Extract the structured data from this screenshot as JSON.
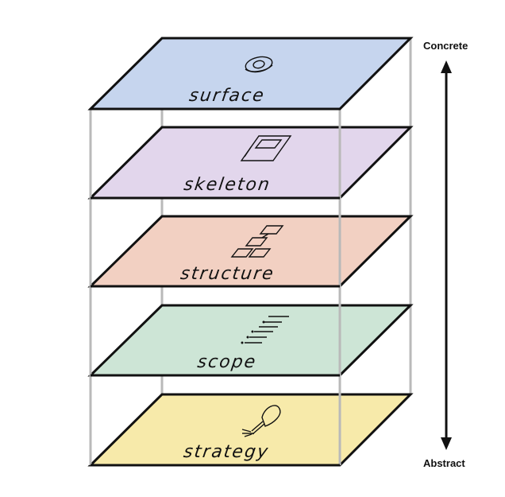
{
  "axis": {
    "top_label": "Concrete",
    "bottom_label": "Abstract"
  },
  "layers": [
    {
      "id": "surface",
      "label": "surface",
      "color": "#c6d5ee",
      "icon": "eye-icon"
    },
    {
      "id": "skeleton",
      "label": "skeleton",
      "color": "#e2d6ec",
      "icon": "wireframe-page-icon"
    },
    {
      "id": "structure",
      "label": "structure",
      "color": "#f2d0c2",
      "icon": "flowchart-icon"
    },
    {
      "id": "scope",
      "label": "scope",
      "color": "#cde5d6",
      "icon": "requirements-list-icon"
    },
    {
      "id": "strategy",
      "label": "strategy",
      "color": "#f7eaaa",
      "icon": "lightbulb-icon"
    }
  ],
  "colors": {
    "frame": "#b9b9b9",
    "outline": "#111111"
  }
}
